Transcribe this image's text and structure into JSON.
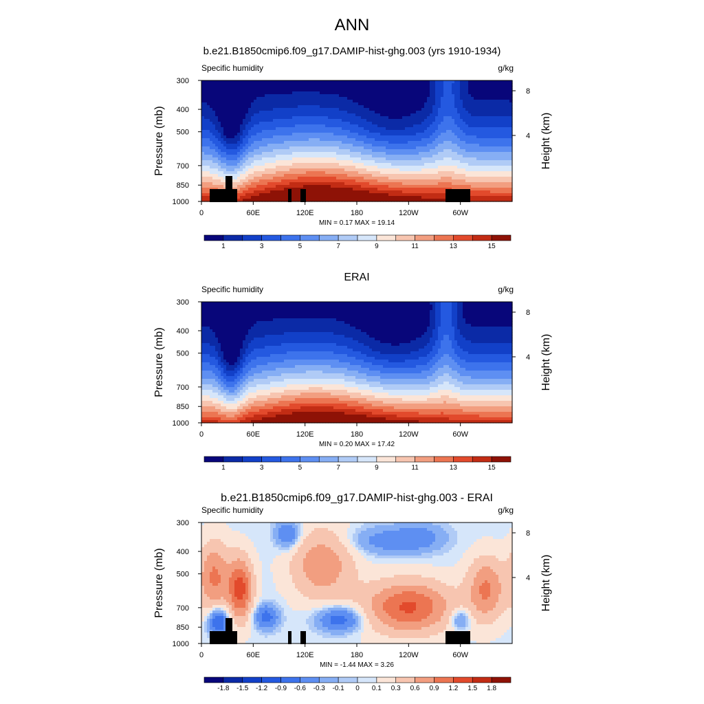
{
  "page": {
    "title": "ANN"
  },
  "colors": {
    "main_scale": [
      "#08067a",
      "#0b2aa6",
      "#1240c8",
      "#2459e0",
      "#3d73ec",
      "#5e8ff2",
      "#86aef4",
      "#b0cbf6",
      "#d6e6fa",
      "#fbe5d8",
      "#f7c5b0",
      "#f29e80",
      "#ec7552",
      "#e24a2c",
      "#c22c14",
      "#8e1206"
    ],
    "diff_scale": [
      "#08067a",
      "#0b2aa6",
      "#1240c8",
      "#2459e0",
      "#3d73ec",
      "#5e8ff2",
      "#86aef4",
      "#b0cbf6",
      "#d6e6fa",
      "#fbe5d8",
      "#f7c5b0",
      "#f29e80",
      "#ec7552",
      "#e24a2c",
      "#c22c14",
      "#8e1206"
    ],
    "terrain": "#000000"
  },
  "chart_data": [
    {
      "type": "heatmap",
      "title": "b.e21.B1850cmip6.f09_g17.DAMIP-hist-ghg.003 (yrs 1910-1934)",
      "left_string": "Specific humidity",
      "right_string": "g/kg",
      "ylabel": "Pressure (mb)",
      "ylabel_right": "Height (km)",
      "x_ticks": [
        "0",
        "60E",
        "120E",
        "180",
        "120W",
        "60W"
      ],
      "x_tick_values": [
        0,
        60,
        120,
        180,
        240,
        300
      ],
      "xlim": [
        0,
        360
      ],
      "y_ticks": [
        "300",
        "400",
        "500",
        "700",
        "850",
        "1000"
      ],
      "y_tick_values": [
        300,
        400,
        500,
        700,
        850,
        1000
      ],
      "ylim": [
        300,
        1000
      ],
      "y_scale": "log",
      "right_ticks": [
        "8",
        "4"
      ],
      "right_tick_values": [
        8,
        4
      ],
      "stats": {
        "min_label": "MIN =",
        "min": "0.17",
        "max_label": "MAX =",
        "max": "19.14"
      },
      "colorbar_labels": [
        "1",
        "3",
        "5",
        "7",
        "9",
        "11",
        "13",
        "15"
      ],
      "kind": "model"
    },
    {
      "type": "heatmap",
      "title": "ERAI",
      "left_string": "Specific humidity",
      "right_string": "g/kg",
      "ylabel": "Pressure (mb)",
      "ylabel_right": "Height (km)",
      "x_ticks": [
        "0",
        "60E",
        "120E",
        "180",
        "120W",
        "60W"
      ],
      "x_tick_values": [
        0,
        60,
        120,
        180,
        240,
        300
      ],
      "xlim": [
        0,
        360
      ],
      "y_ticks": [
        "300",
        "400",
        "500",
        "700",
        "850",
        "1000"
      ],
      "y_tick_values": [
        300,
        400,
        500,
        700,
        850,
        1000
      ],
      "ylim": [
        300,
        1000
      ],
      "y_scale": "log",
      "right_ticks": [
        "8",
        "4"
      ],
      "right_tick_values": [
        8,
        4
      ],
      "stats": {
        "min_label": "MIN =",
        "min": "0.20",
        "max_label": "MAX =",
        "max": "17.42"
      },
      "colorbar_labels": [
        "1",
        "3",
        "5",
        "7",
        "9",
        "11",
        "13",
        "15"
      ],
      "kind": "obs"
    },
    {
      "type": "heatmap",
      "title": "b.e21.B1850cmip6.f09_g17.DAMIP-hist-ghg.003 - ERAI",
      "left_string": "Specific humidity",
      "right_string": "g/kg",
      "ylabel": "Pressure (mb)",
      "ylabel_right": "Height (km)",
      "x_ticks": [
        "0",
        "60E",
        "120E",
        "180",
        "120W",
        "60W"
      ],
      "x_tick_values": [
        0,
        60,
        120,
        180,
        240,
        300
      ],
      "xlim": [
        0,
        360
      ],
      "y_ticks": [
        "300",
        "400",
        "500",
        "700",
        "850",
        "1000"
      ],
      "y_tick_values": [
        300,
        400,
        500,
        700,
        850,
        1000
      ],
      "ylim": [
        300,
        1000
      ],
      "y_scale": "log",
      "right_ticks": [
        "8",
        "4"
      ],
      "right_tick_values": [
        8,
        4
      ],
      "stats": {
        "min_label": "MIN =",
        "min": "-1.44",
        "max_label": "MAX =",
        "max": "3.26"
      },
      "colorbar_labels": [
        "-1.8",
        "-1.5",
        "-1.2",
        "-0.9",
        "-0.6",
        "-0.3",
        "-0.1",
        "0",
        "0.1",
        "0.3",
        "0.6",
        "0.9",
        "1.2",
        "1.5",
        "1.8"
      ],
      "kind": "diff"
    }
  ]
}
